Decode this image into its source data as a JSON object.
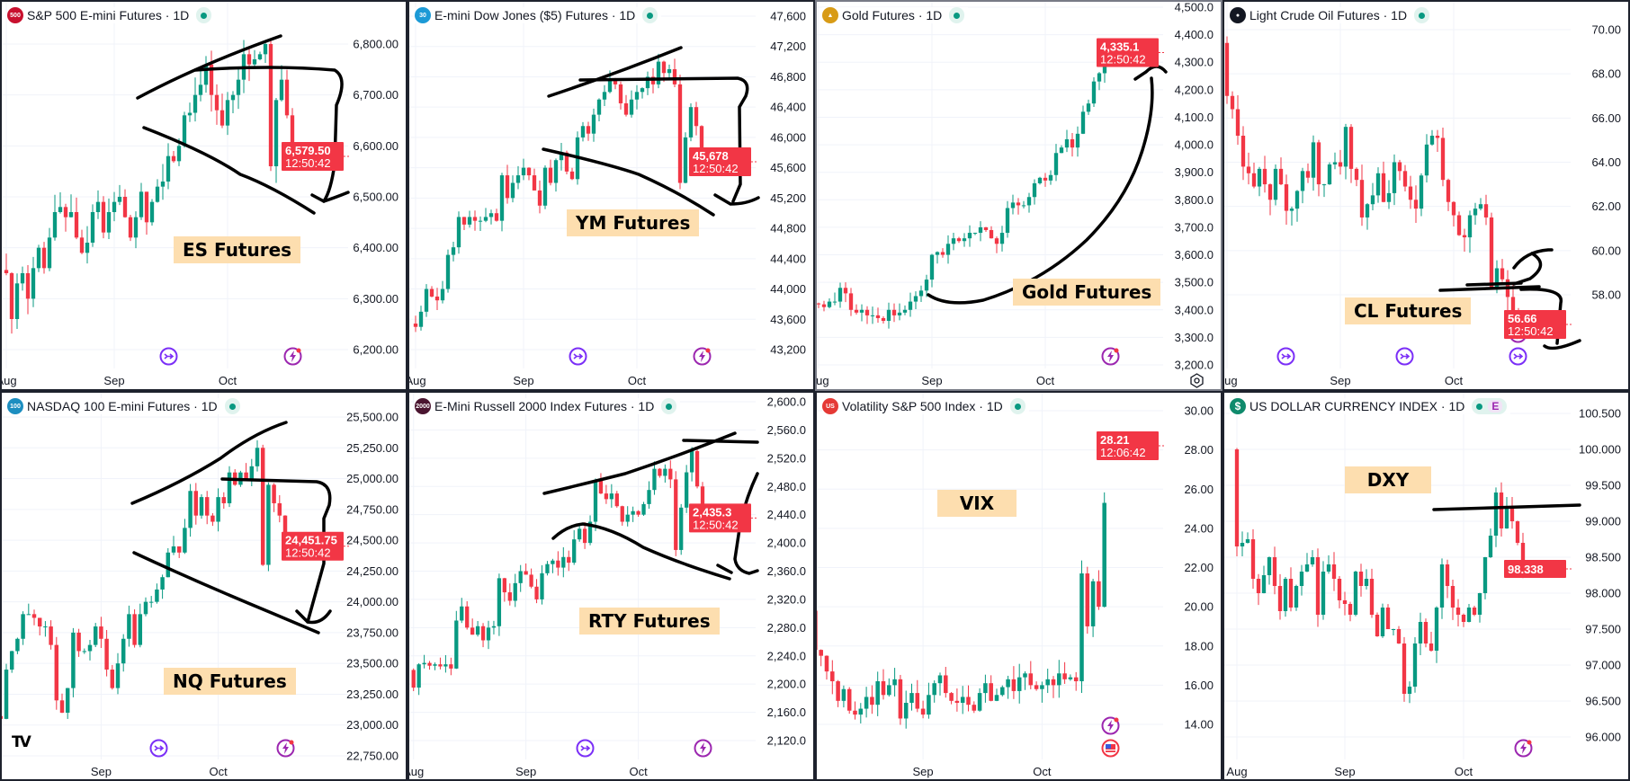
{
  "panels": [
    {
      "id": "es",
      "title": "S&P 500 E-mini Futures · 1D",
      "badge": "500",
      "badge_color": "#c8102e",
      "annotation": "ES Futures",
      "price_label": "6,579.50",
      "countdown": "12:50:42"
    },
    {
      "id": "ym",
      "title": "E-mini Dow Jones ($5) Futures · 1D",
      "badge": "30",
      "badge_color": "#1c9ad6",
      "annotation": "YM Futures",
      "price_label": "45,678",
      "countdown": "12:50:42"
    },
    {
      "id": "gold",
      "title": "Gold Futures · 1D",
      "badge": "▲",
      "badge_color": "#d89b16",
      "annotation": "Gold Futures",
      "price_label": "4,335.1",
      "countdown": "12:50:42"
    },
    {
      "id": "cl",
      "title": "Light Crude Oil Futures · 1D",
      "badge": "●",
      "badge_color": "#131722",
      "annotation": "CL Futures",
      "price_label": "56.66",
      "countdown": "12:50:42"
    },
    {
      "id": "nq",
      "title": "NASDAQ 100 E-mini Futures · 1D",
      "badge": "100",
      "badge_color": "#1c8ec0",
      "annotation": "NQ Futures",
      "price_label": "24,451.75",
      "countdown": "12:50:42",
      "logo": "TV"
    },
    {
      "id": "rty",
      "title": "E-Mini Russell 2000 Index Futures · 1D",
      "badge": "2000",
      "badge_color": "#4a1530",
      "annotation": "RTY Futures",
      "price_label": "2,435.3",
      "countdown": "12:50:42"
    },
    {
      "id": "vix",
      "title": "Volatility S&P 500 Index · 1D",
      "badge": "US",
      "badge_color": "#e53935",
      "annotation": "VIX",
      "price_label": "28.21",
      "countdown": "12:06:42"
    },
    {
      "id": "dxy",
      "title": "US DOLLAR CURRENCY INDEX · 1D",
      "badge": "$",
      "badge_color": "#0f8a6c",
      "annotation": "DXY",
      "price_label": "98.338",
      "countdown": "",
      "extra_badge": "E"
    }
  ],
  "colors": {
    "up": "#089981",
    "down": "#f23645",
    "grid": "#f0f3fa",
    "text": "#131722",
    "price_label_bg": "#f23645"
  },
  "chart_data": [
    {
      "type": "candlestick",
      "title": "S&P 500 E-mini Futures · 1D",
      "ticks": [
        6800,
        6700,
        6600,
        6500,
        6400,
        6300,
        6200
      ],
      "tick_labels": [
        "6,800.00",
        "6,700.00",
        "6,600.00",
        "6,500.00",
        "6,400.00",
        "6,300.00",
        "6,200.00"
      ],
      "x_labels": [
        {
          "label": "Aug",
          "index": 0
        },
        {
          "label": "Sep",
          "index": 20
        },
        {
          "label": "Oct",
          "index": 41
        }
      ],
      "last": 6579.5,
      "open_overrides": {},
      "closes": [
        6350,
        6260,
        6330,
        6350,
        6300,
        6360,
        6400,
        6360,
        6420,
        6470,
        6480,
        6460,
        6470,
        6420,
        6390,
        6410,
        6470,
        6490,
        6430,
        6470,
        6490,
        6500,
        6460,
        6420,
        6460,
        6510,
        6450,
        6490,
        6520,
        6530,
        6580,
        6570,
        6600,
        6660,
        6665,
        6700,
        6720,
        6760,
        6700,
        6670,
        6640,
        6690,
        6700,
        6730,
        6780,
        6760,
        6770,
        6780,
        6800,
        6560,
        6690,
        6730,
        6660,
        6579.5
      ]
    },
    {
      "type": "candlestick",
      "title": "E-mini Dow Jones ($5) Futures · 1D",
      "ticks": [
        47600,
        47200,
        46800,
        46400,
        46000,
        45600,
        45200,
        44800,
        44400,
        44000,
        43600,
        43200
      ],
      "tick_labels": [
        "47,600",
        "47,200",
        "46,800",
        "46,400",
        "46,000",
        "45,600",
        "45,200",
        "44,800",
        "44,400",
        "44,000",
        "43,600",
        "43,200"
      ],
      "x_labels": [
        {
          "label": "Aug",
          "index": 0
        },
        {
          "label": "Sep",
          "index": 20
        },
        {
          "label": "Oct",
          "index": 41
        }
      ],
      "last": 45678,
      "open_overrides": {},
      "closes": [
        43500,
        43700,
        44000,
        43900,
        43850,
        44000,
        44450,
        44550,
        44950,
        44850,
        44950,
        44900,
        44900,
        44950,
        45000,
        44900,
        45500,
        45200,
        45400,
        45500,
        45600,
        45500,
        45300,
        45100,
        45600,
        45400,
        45700,
        45800,
        45550,
        45450,
        46000,
        46150,
        46050,
        46300,
        46500,
        46600,
        46750,
        46700,
        46450,
        46300,
        46500,
        46600,
        46650,
        46800,
        46700,
        47000,
        46850,
        46900,
        46700,
        45400,
        46000,
        46400,
        46150,
        45678
      ]
    },
    {
      "type": "candlestick",
      "title": "Gold Futures · 1D",
      "ticks": [
        4500,
        4400,
        4300,
        4200,
        4100,
        4000,
        3900,
        3800,
        3700,
        3600,
        3500,
        3400,
        3300,
        3200
      ],
      "tick_labels": [
        "4,500.0",
        "4,400.0",
        "4,300.0",
        "4,200.0",
        "4,100.0",
        "4,000.0",
        "3,900.0",
        "3,800.0",
        "3,700.0",
        "3,600.0",
        "3,500.0",
        "3,400.0",
        "3,300.0",
        "3,200.0"
      ],
      "x_labels": [
        {
          "label": "Aug",
          "index": 0
        },
        {
          "label": "Sep",
          "index": 21
        },
        {
          "label": "Oct",
          "index": 42
        }
      ],
      "last": 4335.1,
      "open_overrides": {
        "54": 4345
      },
      "closes": [
        3420,
        3410,
        3430,
        3430,
        3480,
        3460,
        3400,
        3390,
        3400,
        3380,
        3380,
        3370,
        3360,
        3400,
        3380,
        3390,
        3400,
        3430,
        3450,
        3470,
        3510,
        3600,
        3610,
        3600,
        3640,
        3660,
        3650,
        3660,
        3680,
        3680,
        3700,
        3690,
        3660,
        3640,
        3680,
        3770,
        3790,
        3780,
        3780,
        3810,
        3860,
        3880,
        3870,
        3890,
        3970,
        3990,
        4020,
        3990,
        4040,
        4120,
        4150,
        4230,
        4260,
        4320,
        4335.1
      ]
    },
    {
      "type": "candlestick",
      "title": "Light Crude Oil Futures · 1D",
      "ticks": [
        70,
        68,
        66,
        64,
        62,
        60,
        58
      ],
      "tick_labels": [
        "70.00",
        "68.00",
        "66.00",
        "64.00",
        "62.00",
        "60.00",
        "58.00"
      ],
      "x_labels": [
        {
          "label": "Aug",
          "index": 0
        },
        {
          "label": "Sep",
          "index": 21
        },
        {
          "label": "Oct",
          "index": 42
        }
      ],
      "last": 56.66,
      "open_overrides": {
        "0": 69.4,
        "54": 56.9
      },
      "closes": [
        67.0,
        66.4,
        65.2,
        63.8,
        63.5,
        62.9,
        63.7,
        63.0,
        62.3,
        63.7,
        63.0,
        61.8,
        61.9,
        62.7,
        63.6,
        63.3,
        64.9,
        63.0,
        63.0,
        63.9,
        64.0,
        63.8,
        65.6,
        63.7,
        63.2,
        61.5,
        62.1,
        62.5,
        63.5,
        62.2,
        62.6,
        64.0,
        63.6,
        62.9,
        62.3,
        61.9,
        63.4,
        64.8,
        65.2,
        65.1,
        63.2,
        62.2,
        61.6,
        60.7,
        60.6,
        61.6,
        61.9,
        62.1,
        61.5,
        58.3,
        59.2,
        58.7,
        57.9,
        57.3,
        56.66
      ]
    },
    {
      "type": "candlestick",
      "title": "NASDAQ 100 E-mini Futures · 1D",
      "ticks": [
        25500,
        25250,
        25000,
        24750,
        24500,
        24250,
        24000,
        23750,
        23500,
        23250,
        23000,
        22750
      ],
      "tick_labels": [
        "25,500.00",
        "25,250.00",
        "25,000.00",
        "24,750.00",
        "24,500.00",
        "24,250.00",
        "24,000.00",
        "23,750.00",
        "23,500.00",
        "23,250.00",
        "23,000.00",
        "22,750.00"
      ],
      "x_labels": [
        {
          "label": "Sep",
          "index": 18
        },
        {
          "label": "Oct",
          "index": 39
        }
      ],
      "last": 24451.75,
      "open_overrides": {},
      "closes": [
        23050,
        23450,
        23600,
        23700,
        23900,
        23900,
        23870,
        23800,
        23800,
        23650,
        23200,
        23100,
        23300,
        23750,
        23600,
        23600,
        23650,
        23800,
        23700,
        23450,
        23300,
        23500,
        23700,
        23900,
        23650,
        23900,
        24000,
        24000,
        24100,
        24200,
        24400,
        24450,
        24400,
        24600,
        24900,
        24700,
        24850,
        24700,
        24650,
        24850,
        24800,
        25050,
        24950,
        25050,
        25000,
        25100,
        25250,
        24300,
        24950,
        24800,
        24700,
        24451.75
      ]
    },
    {
      "type": "candlestick",
      "title": "E-Mini Russell 2000 Index Futures · 1D",
      "ticks": [
        2600,
        2560,
        2520,
        2480,
        2440,
        2400,
        2360,
        2320,
        2280,
        2240,
        2200,
        2160,
        2120
      ],
      "tick_labels": [
        "2,600.0",
        "2,560.0",
        "2,520.0",
        "2,480.0",
        "2,440.0",
        "2,400.0",
        "2,360.0",
        "2,320.0",
        "2,280.0",
        "2,240.0",
        "2,200.0",
        "2,160.0",
        "2,120.0"
      ],
      "x_labels": [
        {
          "label": "Aug",
          "index": 0
        },
        {
          "label": "Sep",
          "index": 21
        },
        {
          "label": "Oct",
          "index": 42
        }
      ],
      "last": 2435.3,
      "open_overrides": {
        "0": 2220
      },
      "closes": [
        2195,
        2228,
        2230,
        2226,
        2228,
        2225,
        2228,
        2222,
        2290,
        2310,
        2280,
        2270,
        2282,
        2262,
        2280,
        2282,
        2350,
        2330,
        2318,
        2343,
        2360,
        2355,
        2338,
        2320,
        2357,
        2370,
        2375,
        2365,
        2380,
        2372,
        2405,
        2420,
        2400,
        2430,
        2488,
        2470,
        2462,
        2470,
        2452,
        2430,
        2440,
        2445,
        2440,
        2455,
        2475,
        2505,
        2495,
        2505,
        2490,
        2390,
        2450,
        2500,
        2530,
        2480,
        2435.3
      ]
    },
    {
      "type": "candlestick",
      "title": "Volatility S&P 500 Index · 1D",
      "ticks": [
        30,
        28,
        26,
        24,
        22,
        20,
        18,
        16,
        14
      ],
      "tick_labels": [
        "30.00",
        "28.00",
        "26.00",
        "24.00",
        "22.00",
        "20.00",
        "18.00",
        "16.00",
        "14.00"
      ],
      "x_labels": [
        {
          "label": "Sep",
          "index": 19
        },
        {
          "label": "Oct",
          "index": 40
        }
      ],
      "last": 28.21,
      "open_overrides": {
        "0": 19.8,
        "52": 28.5
      },
      "closes": [
        17.8,
        17.5,
        16.7,
        16.2,
        15.2,
        15.8,
        14.7,
        14.5,
        14.8,
        15.4,
        15.0,
        16.2,
        15.5,
        16.0,
        16.3,
        14.3,
        15.1,
        15.6,
        14.8,
        14.5,
        15.5,
        16.1,
        16.5,
        15.6,
        15.2,
        15.1,
        15.4,
        15.0,
        14.7,
        15.6,
        16.1,
        15.2,
        15.5,
        15.9,
        16.3,
        15.7,
        16.4,
        16.6,
        16.0,
        15.8,
        16.0,
        16.3,
        16.0,
        16.6,
        16.3,
        16.4,
        16.2,
        21.7,
        19.0,
        21.3,
        20.0,
        25.3,
        28.21
      ]
    },
    {
      "type": "candlestick",
      "title": "US DOLLAR CURRENCY INDEX · 1D",
      "ticks": [
        100.5,
        100,
        99.5,
        99,
        98.5,
        98,
        97.5,
        97,
        96.5,
        96
      ],
      "tick_labels": [
        "100.500",
        "100.000",
        "99.500",
        "99.000",
        "98.500",
        "98.000",
        "97.500",
        "97.000",
        "96.500",
        "96.000"
      ],
      "x_labels": [
        {
          "label": "Aug",
          "index": 0
        },
        {
          "label": "Sep",
          "index": 20
        },
        {
          "label": "Oct",
          "index": 42
        }
      ],
      "last": 98.338,
      "open_overrides": {
        "0": 100.0
      },
      "closes": [
        98.65,
        98.7,
        98.75,
        98.2,
        98.0,
        98.25,
        98.5,
        98.1,
        97.75,
        98.2,
        97.8,
        98.1,
        98.3,
        98.4,
        98.5,
        97.7,
        98.3,
        98.4,
        98.2,
        97.9,
        97.85,
        97.7,
        98.3,
        98.1,
        98.2,
        97.7,
        97.4,
        97.8,
        97.5,
        97.5,
        97.3,
        96.6,
        96.7,
        97.3,
        97.6,
        97.3,
        97.2,
        97.8,
        98.4,
        98.1,
        97.8,
        97.7,
        97.6,
        97.8,
        97.7,
        98.0,
        98.5,
        98.8,
        99.4,
        98.9,
        99.2,
        99.0,
        98.7,
        98.338
      ]
    }
  ]
}
